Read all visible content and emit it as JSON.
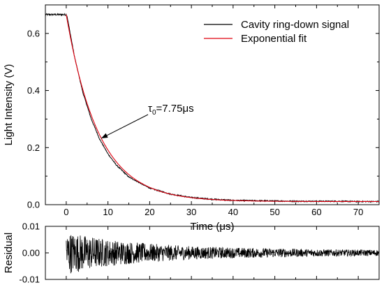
{
  "chart_data": [
    {
      "type": "line",
      "xlabel": "Time (μs)",
      "ylabel": "Light Intensity (V)",
      "xlim": [
        -5,
        75
      ],
      "ylim": [
        0,
        0.7
      ],
      "x_ticks": [
        0,
        10,
        20,
        30,
        40,
        50,
        60,
        70
      ],
      "y_ticks": [
        0.0,
        0.2,
        0.4,
        0.6
      ],
      "legend_position": "top-right",
      "series": [
        {
          "name": "Cavity ring-down signal",
          "color": "#000000",
          "x": [
            -5,
            0,
            0.2,
            2,
            4,
            6,
            8,
            10,
            12,
            15,
            20,
            25,
            30,
            35,
            40,
            45,
            50,
            55,
            60,
            65,
            70,
            75
          ],
          "y": [
            0.666,
            0.666,
            0.66,
            0.517,
            0.392,
            0.3,
            0.23,
            0.178,
            0.139,
            0.097,
            0.058,
            0.037,
            0.025,
            0.019,
            0.015,
            0.014,
            0.013,
            0.012,
            0.012,
            0.012,
            0.011,
            0.011
          ]
        },
        {
          "name": "Exponential fit",
          "color": "#e0000f",
          "model": "exponential decay",
          "start_x": 0,
          "amplitude": 0.655,
          "tau": 7.75,
          "offset": 0.011
        }
      ],
      "annotation": {
        "prefix": "τ",
        "subscript": "0",
        "suffix": "=7.75μs",
        "points_to_x": 8.4
      }
    },
    {
      "type": "line",
      "ylabel": "Residual",
      "xlim": [
        -5,
        75
      ],
      "ylim": [
        -0.01,
        0.01
      ],
      "y_ticks": [
        0.01,
        0.0,
        -0.01
      ],
      "y_tick_labels": [
        "0.01",
        "0.00",
        "-0.01"
      ],
      "series": [
        {
          "name": "Residual",
          "color": "#000000",
          "x": [
            0,
            2,
            5,
            10,
            20,
            30,
            40,
            50,
            60,
            70,
            75
          ],
          "amplitude": [
            0.008,
            0.0075,
            0.0065,
            0.005,
            0.0035,
            0.0025,
            0.002,
            0.0017,
            0.0014,
            0.0012,
            0.0012
          ]
        }
      ]
    }
  ]
}
